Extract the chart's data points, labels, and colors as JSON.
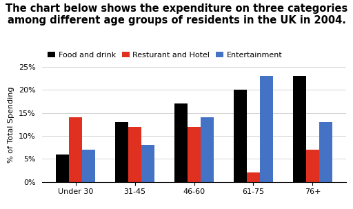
{
  "title": "The chart below shows the expenditure on three categories\namong different age groups of residents in the UK in 2004.",
  "categories": [
    "Under 30",
    "31-45",
    "46-60",
    "61-75",
    "76+"
  ],
  "series": [
    {
      "name": "Food and drink",
      "color": "#000000",
      "values": [
        6,
        13,
        17,
        20,
        23
      ]
    },
    {
      "name": "Resturant and Hotel",
      "color": "#e03020",
      "values": [
        14,
        12,
        12,
        2,
        7
      ]
    },
    {
      "name": "Entertainment",
      "color": "#4472c4",
      "values": [
        7,
        8,
        14,
        23,
        13
      ]
    }
  ],
  "ylabel": "% of Total Spending",
  "ylim": [
    0,
    25
  ],
  "yticks": [
    0,
    5,
    10,
    15,
    20,
    25
  ],
  "ytick_labels": [
    "0%",
    "5%",
    "10%",
    "15%",
    "20%",
    "25%"
  ],
  "background_color": "#ffffff",
  "title_fontsize": 10.5,
  "legend_fontsize": 8,
  "ylabel_fontsize": 8,
  "tick_fontsize": 8,
  "bar_width": 0.22
}
